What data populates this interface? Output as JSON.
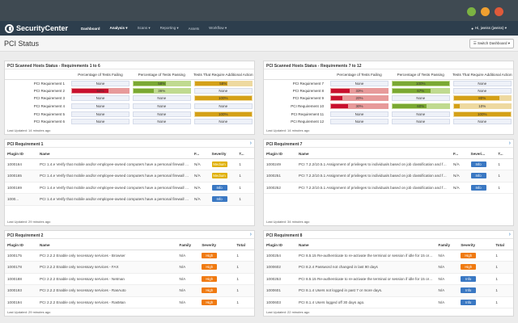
{
  "colors": {
    "fail": "#c8102e",
    "fail_light": "#e79a9a",
    "pass": "#7aa832",
    "pass_light": "#c0da90",
    "action": "#d4a017",
    "action_light": "#eed9a0",
    "severity_medium": "#e0b000",
    "severity_high": "#f07a10",
    "severity_info": "#3a78c3"
  },
  "nav": {
    "logo": "SecurityCenter",
    "items": [
      "Dashboard",
      "Analysis ▾",
      "Scans ▾",
      "Reporting ▾",
      "Assets",
      "Workflow ▾"
    ],
    "user": "Hi, jweiss (jweiss) ▾"
  },
  "page": {
    "title": "PCI Status",
    "switch_label": "☰ Switch Dashboard ▾"
  },
  "matrix_left": {
    "title": "PCI Scanned Hosts Status - Requirements 1 to 6",
    "headers": [
      "",
      "Percentage of Tests Failing",
      "Percentage of Tests Passing",
      "Tests That Require Additional Action"
    ],
    "rows": [
      {
        "label": "PCI Requirement 1",
        "fail": {
          "text": "None",
          "pct": 0
        },
        "pass": {
          "text": "58%",
          "pct": 58
        },
        "action": {
          "text": "58%",
          "pct": 58
        }
      },
      {
        "label": "PCI Requirement 2",
        "fail": {
          "text": "64%",
          "pct": 64
        },
        "pass": {
          "text": "36%",
          "pct": 36
        },
        "action": {
          "text": "None",
          "pct": 0
        }
      },
      {
        "label": "PCI Requirement 3",
        "fail": {
          "text": "None",
          "pct": 0
        },
        "pass": {
          "text": "None",
          "pct": 0
        },
        "action": {
          "text": "100%",
          "pct": 100
        }
      },
      {
        "label": "PCI Requirement 4",
        "fail": {
          "text": "None",
          "pct": 0
        },
        "pass": {
          "text": "None",
          "pct": 0
        },
        "action": {
          "text": "None",
          "pct": 0
        }
      },
      {
        "label": "PCI Requirement 5",
        "fail": {
          "text": "None",
          "pct": 0
        },
        "pass": {
          "text": "None",
          "pct": 0
        },
        "action": {
          "text": "100%",
          "pct": 100
        }
      },
      {
        "label": "PCI Requirement 6",
        "fail": {
          "text": "None",
          "pct": 0
        },
        "pass": {
          "text": "None",
          "pct": 0
        },
        "action": {
          "text": "None",
          "pct": 0
        }
      }
    ],
    "footer": "Last Updated: 14 minutes ago"
  },
  "matrix_right": {
    "title": "PCI Scanned Hosts Status - Requirements 7 to 12",
    "headers": [
      "",
      "Percentage of Tests Failing",
      "Percentage of Tests Passing",
      "Tests That Require Additional Action"
    ],
    "rows": [
      {
        "label": "PCI Requirement 7",
        "fail": {
          "text": "None",
          "pct": 0
        },
        "pass": {
          "text": "100%",
          "pct": 100
        },
        "action": {
          "text": "None",
          "pct": 0
        }
      },
      {
        "label": "PCI Requirement 8",
        "fail": {
          "text": "33%",
          "pct": 33
        },
        "pass": {
          "text": "67%",
          "pct": 67
        },
        "action": {
          "text": "None",
          "pct": 0
        }
      },
      {
        "label": "PCI Requirement 9",
        "fail": {
          "text": "20%",
          "pct": 20
        },
        "pass": {
          "text": "None",
          "pct": 0
        },
        "action": {
          "text": "80%",
          "pct": 80
        }
      },
      {
        "label": "PCI Requirement 10",
        "fail": {
          "text": "30%",
          "pct": 30
        },
        "pass": {
          "text": "60%",
          "pct": 60
        },
        "action": {
          "text": "10%",
          "pct": 10
        }
      },
      {
        "label": "PCI Requirement 11",
        "fail": {
          "text": "None",
          "pct": 0
        },
        "pass": {
          "text": "None",
          "pct": 0
        },
        "action": {
          "text": "100%",
          "pct": 100
        }
      },
      {
        "label": "PCI Requirement 12",
        "fail": {
          "text": "None",
          "pct": 0
        },
        "pass": {
          "text": "None",
          "pct": 0
        },
        "action": {
          "text": "None",
          "pct": 0
        }
      }
    ],
    "footer": "Last Updated: 14 minutes ago"
  },
  "req1": {
    "title": "PCI Requirement 1",
    "headers": [
      "Plugin ID",
      "Name",
      "F...",
      "Severity",
      "T..."
    ],
    "rows": [
      {
        "id": "1000164",
        "name": "PCI 1.4.e Verify that mobile and/or employee-owned computers have a personal firewall installe...",
        "f": "N/A",
        "severity": "Medium",
        "total": "1"
      },
      {
        "id": "1000165",
        "name": "PCI 1.4.e Verify that mobile and/or employee-owned computers have a personal firewall installe...",
        "f": "N/A",
        "severity": "Medium",
        "total": "1"
      },
      {
        "id": "1000169",
        "name": "PCI 1.4.e Verify that mobile and/or employee-owned computers have a personal firewall installe...",
        "f": "N/A",
        "severity": "Info",
        "total": "1"
      },
      {
        "id": "1000...",
        "name": "PCI 1.4.e Verify that mobile and/or employee-owned computers have a personal firewall installe...",
        "f": "N/A",
        "severity": "Info",
        "total": "1"
      }
    ],
    "footer": "Last Updated: 29 minutes ago"
  },
  "req7": {
    "title": "PCI Requirement 7",
    "headers": [
      "Plugin ID",
      "Name",
      "F...",
      "Severi...",
      "T..."
    ],
    "rows": [
      {
        "id": "1000249",
        "name": "PCI 7.2.2/10.5.1 Assignment of privileges to individuals based on job classification and function - A...",
        "f": "N/A",
        "severity": "Info",
        "total": "1"
      },
      {
        "id": "1000251",
        "name": "PCI 7.2.2/10.5.1 Assignment of privileges to individuals based on job classification and function - A...",
        "f": "N/A",
        "severity": "Info",
        "total": "1"
      },
      {
        "id": "1000252",
        "name": "PCI 7.2.2/10.5.1 Assignment of privileges to individuals based on job classification and function - S...",
        "f": "N/A",
        "severity": "Info",
        "total": "1"
      }
    ],
    "footer": "Last Updated: 34 minutes ago"
  },
  "req2": {
    "title": "PCI Requirement 2",
    "headers": [
      "Plugin ID",
      "Name",
      "Family",
      "Severity",
      "Total"
    ],
    "rows": [
      {
        "id": "1000175",
        "name": "PCI 2.2.2 Enable only necessary services - Browser",
        "f": "N/A",
        "severity": "High",
        "total": "1"
      },
      {
        "id": "1000178",
        "name": "PCI 2.2.2 Enable only necessary services - FAX",
        "f": "N/A",
        "severity": "High",
        "total": "1"
      },
      {
        "id": "1000188",
        "name": "PCI 2.2.2 Enable only necessary services - Netman",
        "f": "N/A",
        "severity": "High",
        "total": "1"
      },
      {
        "id": "1000193",
        "name": "PCI 2.2.2 Enable only necessary services - RasAuto",
        "f": "N/A",
        "severity": "High",
        "total": "1"
      },
      {
        "id": "1000194",
        "name": "PCI 2.2.2 Enable only necessary services - RasMan",
        "f": "N/A",
        "severity": "High",
        "total": "1"
      }
    ],
    "footer": "Last Updated: 29 minutes ago"
  },
  "req8": {
    "title": "PCI Requirement 8",
    "headers": [
      "Plugin ID",
      "Name",
      "Family",
      "Severity",
      "Total"
    ],
    "rows": [
      {
        "id": "1000254",
        "name": "PCI 8.5.15 Re-authenticate to re-activate the terminal or session if idle for 15 or more mi...",
        "f": "N/A",
        "severity": "High",
        "total": "1"
      },
      {
        "id": "1000602",
        "name": "PCI 8.2.4 Password not changed in last 90 days",
        "f": "N/A",
        "severity": "High",
        "total": "1"
      },
      {
        "id": "1000253",
        "name": "PCI 8.5.15 Re-authenticate to re-activate the terminal or session if idle for 15 or more mi...",
        "f": "N/A",
        "severity": "Info",
        "total": "1"
      },
      {
        "id": "1000601",
        "name": "PCI 8.1.4 Users not logged in past 7 or more days.",
        "f": "N/A",
        "severity": "Info",
        "total": "1"
      },
      {
        "id": "1000603",
        "name": "PCI 8.1.4 Users logged off 30 days ago.",
        "f": "N/A",
        "severity": "Info",
        "total": "1"
      }
    ],
    "footer": "Last Updated: 22 minutes ago"
  }
}
